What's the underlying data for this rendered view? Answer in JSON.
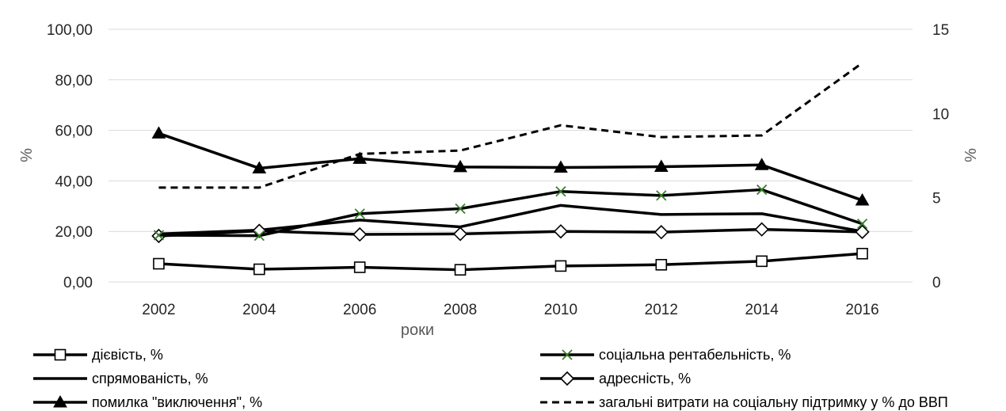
{
  "chart_data": {
    "type": "line",
    "title": "",
    "xlabel": "роки",
    "ylabel": "%",
    "y2label": "%",
    "categories": [
      "2002",
      "2004",
      "2006",
      "2008",
      "2010",
      "2012",
      "2014",
      "2016"
    ],
    "ylim": [
      0,
      100
    ],
    "y2lim": [
      0,
      15
    ],
    "y_ticks": [
      "0,00",
      "20,00",
      "40,00",
      "60,00",
      "80,00",
      "100,00"
    ],
    "y2_ticks": [
      "0",
      "5",
      "10",
      "15"
    ],
    "grid": "horizontal",
    "legend_position": "bottom",
    "series": [
      {
        "name": "дієвість, %",
        "axis": "left",
        "marker": "square",
        "line": "solid",
        "color": "#000000",
        "values": [
          7.2,
          5.0,
          5.8,
          4.8,
          6.3,
          6.8,
          8.2,
          11.2
        ]
      },
      {
        "name": "соціальна рентабельність, %",
        "axis": "left",
        "marker": "x",
        "line": "solid",
        "color": "#000000",
        "marker_color": "#3a7d2c",
        "values": [
          18.5,
          18.3,
          27.0,
          29.0,
          35.8,
          34.2,
          36.5,
          23.0
        ]
      },
      {
        "name": "спрямованість, %",
        "axis": "left",
        "marker": "none",
        "line": "solid",
        "color": "#000000",
        "values": [
          19.0,
          20.5,
          24.5,
          21.8,
          30.3,
          26.7,
          27.0,
          20.0
        ]
      },
      {
        "name": "адресність, %",
        "axis": "left",
        "marker": "diamond",
        "line": "solid",
        "color": "#000000",
        "values": [
          18.2,
          20.2,
          18.8,
          19.0,
          20.0,
          19.7,
          20.8,
          19.8
        ]
      },
      {
        "name": "помилка \"виключення\", %",
        "axis": "left",
        "marker": "triangle",
        "line": "solid",
        "color": "#000000",
        "values": [
          58.8,
          45.0,
          48.8,
          45.5,
          45.3,
          45.6,
          46.3,
          32.3
        ]
      },
      {
        "name": "загальні витрати на соціальну підтримку у % до ВВП",
        "axis": "right",
        "marker": "none",
        "line": "dashed",
        "color": "#000000",
        "values": [
          5.6,
          5.6,
          7.6,
          7.8,
          9.3,
          8.6,
          8.7,
          13.0
        ]
      }
    ]
  }
}
